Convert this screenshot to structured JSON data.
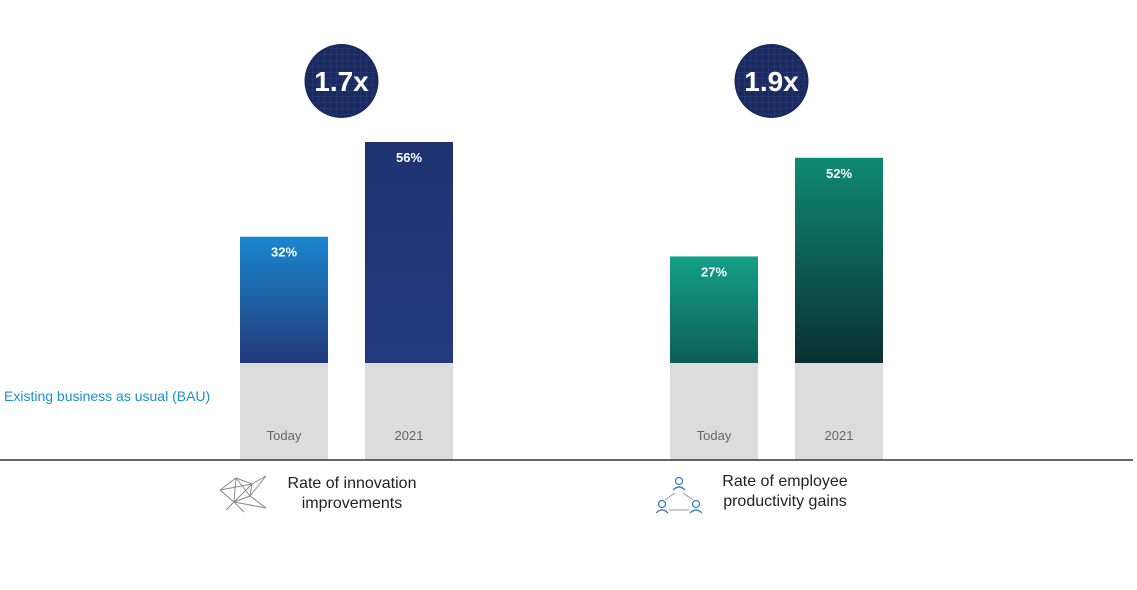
{
  "bau_label": "Existing business as usual (BAU)",
  "chart_data": [
    {
      "type": "bar",
      "categories": [
        "Today",
        "2021"
      ],
      "values": [
        32,
        56
      ],
      "data_labels": [
        "32%",
        "56%"
      ],
      "multiplier": "1.7x",
      "caption": "Rate of innovation improvements",
      "caption_lines": [
        "Rate of innovation",
        "improvements"
      ],
      "icon": "network-icon",
      "ylim": [
        0,
        56
      ],
      "colors": {
        "today_top": "#1a87cf",
        "today_bottom": "#233a7a",
        "future_top": "#1e3270",
        "future_bottom": "#233a80"
      }
    },
    {
      "type": "bar",
      "categories": [
        "Today",
        "2021"
      ],
      "values": [
        27,
        52
      ],
      "data_labels": [
        "27%",
        "52%"
      ],
      "multiplier": "1.9x",
      "caption": "Rate of employee productivity gains",
      "caption_lines": [
        "Rate of employee",
        "productivity gains"
      ],
      "icon": "people-icon",
      "ylim": [
        0,
        56
      ],
      "colors": {
        "today_top": "#14a08a",
        "today_bottom": "#0d5e58",
        "future_top": "#0f8a72",
        "future_bottom": "#0a2f33"
      }
    }
  ],
  "colors": {
    "badge": "#1b2a5e",
    "base_block": "#dcdcdc",
    "axis": "#333333",
    "bau_text": "#1a8fd1"
  }
}
